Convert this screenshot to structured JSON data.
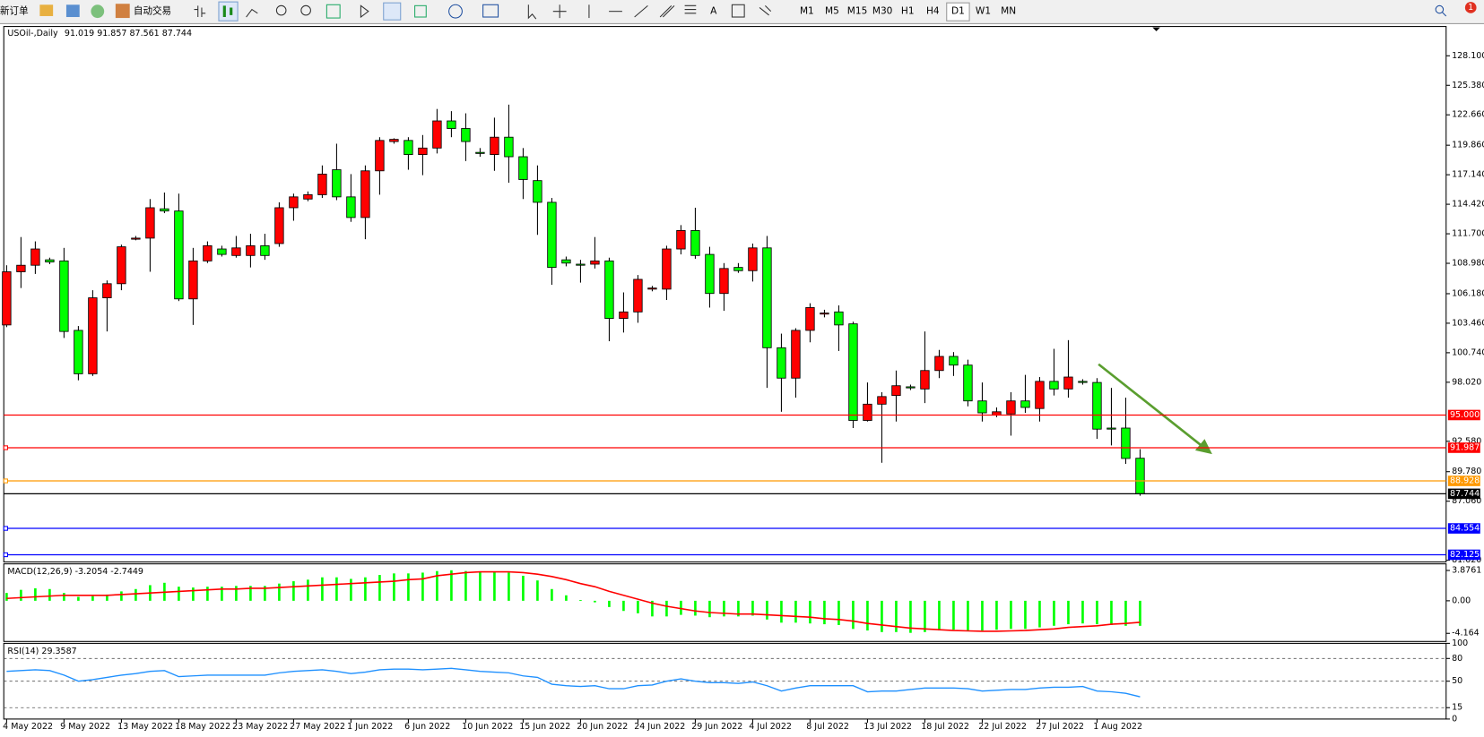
{
  "toolbar": {
    "new_order": "新订单",
    "auto_trading": "自动交易",
    "text_tool": "A",
    "timeframes": [
      "M1",
      "M5",
      "M15",
      "M30",
      "H1",
      "H4",
      "D1",
      "W1",
      "MN"
    ],
    "active_timeframe": "D1",
    "notifications": 1
  },
  "chart_data": {
    "type": "candlestick",
    "title": "USOil-,Daily",
    "categories": [
      "4 May 2022",
      null,
      null,
      null,
      "9 May 2022",
      null,
      null,
      null,
      "13 May 2022",
      null,
      null,
      null,
      "18 May 2022",
      null,
      null,
      null,
      "23 May 2022",
      null,
      null,
      null,
      "27 May 2022",
      null,
      null,
      null,
      "1 Jun 2022",
      null,
      null,
      null,
      "6 Jun 2022",
      null,
      null,
      null,
      "10 Jun 2022",
      null,
      null,
      null,
      "15 Jun 2022",
      null,
      null,
      null,
      "20 Jun 2022",
      null,
      null,
      null,
      "24 Jun 2022",
      null,
      null,
      null,
      "29 Jun 2022",
      null,
      null,
      null,
      "4 Jul 2022",
      null,
      null,
      null,
      "8 Jul 2022",
      null,
      null,
      null,
      "13 Jul 2022",
      null,
      null,
      null,
      "18 Jul 2022",
      null,
      null,
      null,
      "22 Jul 2022",
      null,
      null,
      null,
      "27 Jul 2022",
      null,
      null,
      null,
      "1 Aug 2022",
      null,
      null,
      null
    ],
    "open": [
      103.3,
      108.2,
      108.8,
      109.3,
      109.2,
      102.8,
      98.8,
      105.8,
      107.1,
      111.2,
      111.3,
      114.0,
      113.8,
      105.7,
      109.2,
      110.3,
      109.7,
      109.7,
      110.6,
      110.8,
      114.1,
      114.9,
      115.3,
      117.6,
      115.1,
      113.2,
      117.5,
      120.2,
      120.3,
      119.0,
      119.6,
      122.1,
      121.4,
      119.2,
      119.0,
      120.6,
      118.8,
      116.6,
      114.6,
      109.3,
      108.9,
      108.9,
      109.2,
      103.9,
      104.5,
      106.6,
      106.6,
      110.3,
      112.0,
      109.8,
      106.2,
      108.6,
      108.3,
      110.4,
      101.2,
      98.4,
      102.8,
      104.3,
      104.5,
      103.4,
      94.5,
      96.0,
      96.8,
      97.6,
      97.4,
      99.1,
      100.4,
      99.6,
      96.3,
      95.0,
      95.1,
      96.3,
      95.6,
      98.1,
      97.4,
      98.1,
      98.0,
      93.8,
      93.8,
      91.019
    ],
    "high": [
      108.8,
      111.4,
      111.0,
      109.5,
      110.4,
      103.2,
      106.5,
      107.4,
      110.7,
      111.5,
      114.9,
      115.5,
      115.4,
      110.4,
      111.0,
      110.6,
      111.5,
      111.7,
      111.7,
      114.6,
      115.4,
      115.6,
      118.0,
      120.0,
      117.2,
      118.0,
      120.6,
      120.5,
      120.6,
      120.8,
      123.2,
      123.0,
      122.8,
      119.6,
      122.4,
      123.6,
      119.6,
      118.0,
      115.0,
      109.6,
      109.3,
      111.4,
      109.5,
      106.3,
      107.9,
      106.9,
      110.6,
      112.5,
      114.1,
      110.5,
      109.0,
      109.0,
      110.8,
      111.5,
      102.5,
      103.0,
      105.3,
      104.7,
      105.1,
      103.6,
      98.0,
      97.1,
      99.1,
      97.8,
      102.7,
      101.0,
      100.8,
      100.1,
      98.0,
      95.7,
      97.1,
      98.7,
      98.5,
      101.1,
      101.9,
      98.3,
      98.4,
      97.5,
      96.6,
      91.857
    ],
    "low": [
      103.1,
      106.7,
      108.0,
      108.9,
      102.1,
      98.2,
      98.6,
      102.7,
      106.5,
      111.1,
      108.2,
      113.6,
      105.5,
      103.3,
      109.0,
      109.6,
      109.5,
      108.6,
      109.3,
      110.5,
      112.9,
      114.7,
      115.0,
      114.8,
      112.8,
      111.2,
      115.3,
      120.0,
      117.6,
      117.1,
      119.1,
      120.6,
      118.4,
      118.8,
      117.5,
      116.4,
      114.9,
      111.6,
      107.0,
      108.7,
      107.2,
      108.5,
      101.8,
      102.6,
      103.5,
      106.4,
      105.6,
      109.8,
      109.4,
      104.9,
      104.6,
      108.1,
      107.3,
      97.5,
      95.3,
      96.6,
      101.7,
      104.0,
      100.9,
      93.8,
      94.4,
      90.6,
      94.4,
      97.3,
      96.1,
      98.4,
      98.6,
      95.8,
      94.4,
      94.8,
      93.1,
      95.2,
      94.4,
      96.8,
      96.6,
      97.8,
      92.8,
      92.2,
      90.5,
      87.561
    ],
    "close": [
      108.2,
      108.8,
      110.3,
      109.1,
      102.7,
      98.8,
      105.8,
      107.1,
      110.5,
      111.3,
      114.1,
      113.8,
      105.7,
      109.2,
      110.6,
      109.8,
      110.4,
      110.6,
      109.7,
      114.1,
      115.1,
      115.3,
      117.2,
      115.1,
      113.2,
      117.5,
      120.3,
      120.4,
      119.0,
      119.6,
      122.1,
      121.4,
      120.2,
      119.1,
      120.6,
      118.8,
      116.7,
      114.6,
      108.6,
      109.0,
      108.8,
      109.2,
      103.9,
      104.5,
      107.5,
      106.7,
      110.3,
      112.0,
      109.7,
      106.2,
      108.5,
      108.3,
      110.4,
      101.2,
      98.4,
      102.8,
      104.9,
      104.4,
      103.3,
      94.5,
      96.0,
      96.7,
      97.7,
      97.5,
      99.1,
      100.4,
      99.6,
      96.3,
      95.2,
      95.3,
      96.3,
      95.7,
      98.1,
      97.4,
      98.5,
      98.0,
      93.7,
      93.7,
      91.0,
      87.744
    ],
    "up_color": "#ff0000",
    "down_color": "#00ff00",
    "ylim": [
      81.46,
      130.8
    ],
    "yticks": [
      {
        "value": 128.1,
        "label": "128.100"
      },
      {
        "value": 125.38,
        "label": "125.380"
      },
      {
        "value": 122.66,
        "label": "122.660"
      },
      {
        "value": 119.86,
        "label": "119.860"
      },
      {
        "value": 117.14,
        "label": "117.140"
      },
      {
        "value": 114.42,
        "label": "114.420"
      },
      {
        "value": 111.7,
        "label": "111.700"
      },
      {
        "value": 108.98,
        "label": "108.980"
      },
      {
        "value": 106.18,
        "label": "106.180"
      },
      {
        "value": 103.46,
        "label": "103.460"
      },
      {
        "value": 100.74,
        "label": "100.740"
      },
      {
        "value": 98.02,
        "label": "98.020"
      },
      {
        "value": 92.58,
        "label": "92.580"
      },
      {
        "value": 89.78,
        "label": "89.780"
      },
      {
        "value": 87.06,
        "label": "87.060"
      },
      {
        "value": 81.62,
        "label": "81.620"
      }
    ],
    "levels": [
      {
        "value": 95,
        "label": "95.000",
        "color": "#ff0000"
      },
      {
        "value": 91.987,
        "color": "#ff0000"
      },
      {
        "value": 88.928,
        "color": "#ff9900"
      },
      {
        "value": 87.744,
        "color": "#000000"
      },
      {
        "value": 84.554,
        "color": "#0000ff"
      },
      {
        "value": 82.125,
        "color": "#0000ff"
      }
    ],
    "macd": {
      "name": "MACD(12,26,9)",
      "color": "#00ff00",
      "signal_color": "#ff0000",
      "ylim": [
        -5.2,
        4.72
      ],
      "yticks": [
        3.8761,
        {
          "value": 0,
          "label": "0.00"
        },
        -4.164
      ],
      "values": [
        1.0,
        1.4,
        1.6,
        1.5,
        1.0,
        0.5,
        0.6,
        0.8,
        1.2,
        1.5,
        2.0,
        2.3,
        1.8,
        1.7,
        1.8,
        1.8,
        1.9,
        1.9,
        1.9,
        2.2,
        2.5,
        2.7,
        3.0,
        3.0,
        2.8,
        3.0,
        3.3,
        3.5,
        3.5,
        3.6,
        3.8,
        3.9,
        3.8,
        3.7,
        3.7,
        3.6,
        3.2,
        2.6,
        1.5,
        0.7,
        0.1,
        -0.2,
        -0.8,
        -1.3,
        -1.6,
        -2.0,
        -2.0,
        -1.8,
        -1.9,
        -2.1,
        -2.0,
        -2.0,
        -1.9,
        -2.4,
        -2.8,
        -2.8,
        -2.9,
        -3.0,
        -3.1,
        -3.6,
        -3.8,
        -4.0,
        -4.0,
        -4.1,
        -4.0,
        -3.8,
        -3.7,
        -3.8,
        -3.8,
        -3.7,
        -3.6,
        -3.6,
        -3.4,
        -3.2,
        -3.0,
        -2.9,
        -3.0,
        -3.1,
        -3.2,
        -3.2054
      ],
      "signal": [
        0.3,
        0.4,
        0.5,
        0.6,
        0.7,
        0.7,
        0.7,
        0.7,
        0.8,
        0.9,
        1.0,
        1.1,
        1.2,
        1.3,
        1.4,
        1.5,
        1.5,
        1.6,
        1.6,
        1.7,
        1.8,
        1.9,
        2.0,
        2.1,
        2.2,
        2.3,
        2.4,
        2.5,
        2.7,
        2.8,
        3.2,
        3.4,
        3.6,
        3.7,
        3.7,
        3.7,
        3.6,
        3.4,
        3.1,
        2.7,
        2.2,
        1.8,
        1.2,
        0.7,
        0.2,
        -0.3,
        -0.7,
        -1.0,
        -1.3,
        -1.5,
        -1.6,
        -1.7,
        -1.7,
        -1.8,
        -1.9,
        -2.0,
        -2.1,
        -2.3,
        -2.4,
        -2.6,
        -2.9,
        -3.1,
        -3.3,
        -3.5,
        -3.6,
        -3.7,
        -3.8,
        -3.85,
        -3.9,
        -3.9,
        -3.85,
        -3.8,
        -3.7,
        -3.6,
        -3.4,
        -3.3,
        -3.2,
        -3.0,
        -2.9,
        -2.7449
      ]
    },
    "rsi": {
      "name": "RSI(14)",
      "color": "#1e90ff",
      "ylim": [
        0,
        100
      ],
      "yticks": [
        100,
        80,
        50,
        15,
        0
      ],
      "levels": [
        80,
        50,
        15
      ],
      "values": [
        63,
        64,
        65,
        64,
        58,
        50,
        52,
        55,
        58,
        60,
        63,
        64,
        56,
        57,
        58,
        58,
        58,
        58,
        58,
        61,
        63,
        64,
        65,
        63,
        60,
        62,
        65,
        66,
        66,
        65,
        66,
        67,
        65,
        63,
        62,
        61,
        57,
        55,
        46,
        44,
        43,
        44,
        40,
        40,
        44,
        45,
        50,
        53,
        50,
        48,
        48,
        47,
        49,
        44,
        37,
        41,
        44,
        44,
        44,
        44,
        36,
        37,
        37,
        39,
        41,
        41,
        41,
        40,
        37,
        38,
        39,
        39,
        41,
        42,
        42,
        43,
        37,
        36,
        34,
        29.3587
      ]
    }
  }
}
